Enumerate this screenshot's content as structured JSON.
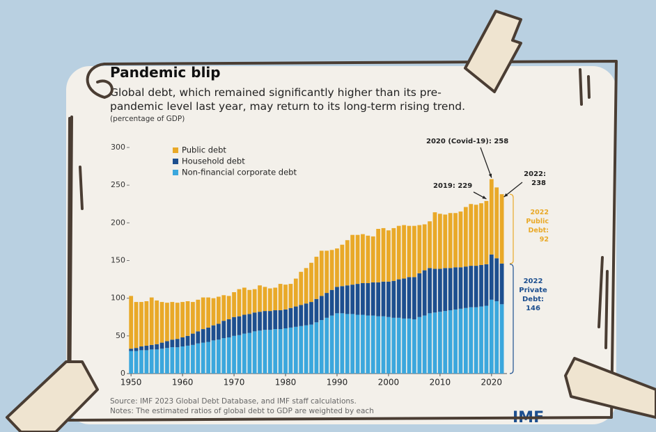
{
  "chart_data": {
    "type": "stacked-bar",
    "title": "Pandemic blip",
    "subtitle": [
      "Global debt, which remained significantly higher than its pre-",
      "pandemic level last year, may return to its long-term rising trend."
    ],
    "ylabel": "(percentage of GDP)",
    "x": [
      1950,
      1951,
      1952,
      1953,
      1954,
      1955,
      1956,
      1957,
      1958,
      1959,
      1960,
      1961,
      1962,
      1963,
      1964,
      1965,
      1966,
      1967,
      1968,
      1969,
      1970,
      1971,
      1972,
      1973,
      1974,
      1975,
      1976,
      1977,
      1978,
      1979,
      1980,
      1981,
      1982,
      1983,
      1984,
      1985,
      1986,
      1987,
      1988,
      1989,
      1990,
      1991,
      1992,
      1993,
      1994,
      1995,
      1996,
      1997,
      1998,
      1999,
      2000,
      2001,
      2002,
      2003,
      2004,
      2005,
      2006,
      2007,
      2008,
      2009,
      2010,
      2011,
      2012,
      2013,
      2014,
      2015,
      2016,
      2017,
      2018,
      2019,
      2020,
      2021,
      2022
    ],
    "series": [
      {
        "name": "Non-financial corporate debt",
        "color": "#3ba7dd",
        "values": [
          30,
          30,
          31,
          31,
          32,
          32,
          33,
          34,
          35,
          35,
          36,
          37,
          38,
          40,
          41,
          42,
          44,
          45,
          47,
          48,
          50,
          51,
          53,
          54,
          56,
          57,
          58,
          58,
          59,
          59,
          60,
          61,
          62,
          63,
          64,
          65,
          68,
          71,
          74,
          77,
          80,
          80,
          79,
          79,
          78,
          78,
          77,
          77,
          76,
          76,
          75,
          74,
          74,
          73,
          73,
          72,
          75,
          77,
          80,
          81,
          82,
          83,
          84,
          85,
          86,
          87,
          88,
          88,
          89,
          90,
          98,
          96,
          92
        ]
      },
      {
        "name": "Household debt",
        "color": "#1d4f8f",
        "values": [
          3,
          4,
          5,
          6,
          6,
          7,
          8,
          9,
          10,
          11,
          12,
          13,
          15,
          16,
          18,
          19,
          20,
          21,
          23,
          24,
          25,
          25,
          25,
          25,
          25,
          25,
          25,
          25,
          25,
          25,
          25,
          26,
          27,
          28,
          29,
          30,
          31,
          32,
          33,
          34,
          35,
          36,
          38,
          39,
          41,
          42,
          43,
          44,
          45,
          46,
          47,
          49,
          51,
          53,
          55,
          56,
          58,
          60,
          60,
          58,
          57,
          57,
          56,
          56,
          55,
          55,
          55,
          55,
          55,
          55,
          60,
          57,
          54
        ]
      },
      {
        "name": "Public debt",
        "color": "#e9a928",
        "values": [
          70,
          61,
          59,
          59,
          63,
          58,
          54,
          51,
          50,
          48,
          47,
          46,
          42,
          42,
          42,
          40,
          36,
          36,
          34,
          31,
          33,
          36,
          36,
          32,
          31,
          35,
          32,
          30,
          30,
          35,
          33,
          32,
          37,
          44,
          47,
          52,
          56,
          60,
          56,
          53,
          51,
          55,
          60,
          66,
          65,
          65,
          63,
          61,
          71,
          71,
          68,
          70,
          71,
          71,
          68,
          68,
          64,
          61,
          62,
          75,
          73,
          71,
          73,
          72,
          74,
          79,
          82,
          81,
          82,
          84,
          100,
          94,
          92
        ]
      }
    ],
    "xlim": [
      1949.3,
      2023.0
    ],
    "xticks": [
      1950,
      1960,
      1970,
      1980,
      1990,
      2000,
      2010,
      2020
    ],
    "ylim": [
      0,
      300
    ],
    "yticks": [
      0,
      50,
      100,
      150,
      200,
      250,
      300
    ],
    "legend": "upper left",
    "annotations": [
      "2020 (Covid-19): 258",
      "2019: 229",
      "2022: 238",
      "2022 Public Debt: 92",
      "2022 Private Debt: 146"
    ],
    "source": "Source: IMF 2023 Global Debt Database, and IMF staff calculations.",
    "notes": "Notes: The estimated ratios of global debt to GDP are weighted by each",
    "logo": "IMF"
  }
}
